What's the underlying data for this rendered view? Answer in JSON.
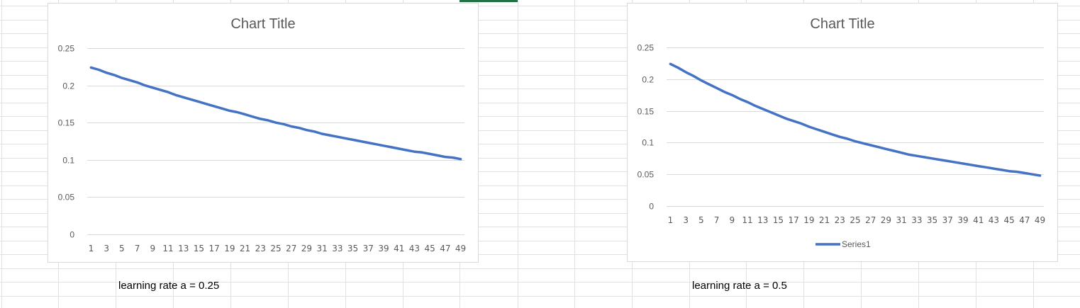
{
  "theme": {
    "series_color": "#4472c4",
    "gridline_color": "#d9d9d9",
    "sheet_grid_color": "#e1e1e1",
    "active_cell_color": "#217346"
  },
  "captions": [
    "learning rate a = 0.25",
    "learning rate a = 0.5"
  ],
  "chart_data": [
    {
      "type": "line",
      "title": "Chart Title",
      "xlabel": "",
      "ylabel": "",
      "x": [
        1,
        2,
        3,
        4,
        5,
        6,
        7,
        8,
        9,
        10,
        11,
        12,
        13,
        14,
        15,
        16,
        17,
        18,
        19,
        20,
        21,
        22,
        23,
        24,
        25,
        26,
        27,
        28,
        29,
        30,
        31,
        32,
        33,
        34,
        35,
        36,
        37,
        38,
        39,
        40,
        41,
        42,
        43,
        44,
        45,
        46,
        47,
        48,
        49
      ],
      "x_tick_labels": [
        "1",
        "3",
        "5",
        "7",
        "9",
        "11",
        "13",
        "15",
        "17",
        "19",
        "21",
        "23",
        "25",
        "27",
        "29",
        "31",
        "33",
        "35",
        "37",
        "39",
        "41",
        "43",
        "45",
        "47",
        "49"
      ],
      "y_ticks": [
        "0",
        "0.05",
        "0.1",
        "0.15",
        "0.2",
        "0.25"
      ],
      "ylim": [
        0,
        0.25
      ],
      "grid": true,
      "legend": "none",
      "series": [
        {
          "values": [
            0.224,
            0.221,
            0.217,
            0.214,
            0.21,
            0.207,
            0.204,
            0.2,
            0.197,
            0.194,
            0.191,
            0.187,
            0.184,
            0.181,
            0.178,
            0.175,
            0.172,
            0.169,
            0.166,
            0.164,
            0.161,
            0.158,
            0.155,
            0.153,
            0.15,
            0.148,
            0.145,
            0.143,
            0.14,
            0.138,
            0.135,
            0.133,
            0.131,
            0.129,
            0.127,
            0.125,
            0.123,
            0.121,
            0.119,
            0.117,
            0.115,
            0.113,
            0.111,
            0.11,
            0.108,
            0.106,
            0.104,
            0.103,
            0.101
          ]
        }
      ]
    },
    {
      "type": "line",
      "title": "Chart Title",
      "xlabel": "",
      "ylabel": "",
      "x": [
        1,
        2,
        3,
        4,
        5,
        6,
        7,
        8,
        9,
        10,
        11,
        12,
        13,
        14,
        15,
        16,
        17,
        18,
        19,
        20,
        21,
        22,
        23,
        24,
        25,
        26,
        27,
        28,
        29,
        30,
        31,
        32,
        33,
        34,
        35,
        36,
        37,
        38,
        39,
        40,
        41,
        42,
        43,
        44,
        45,
        46,
        47,
        48,
        49
      ],
      "x_tick_labels": [
        "1",
        "3",
        "5",
        "7",
        "9",
        "11",
        "13",
        "15",
        "17",
        "19",
        "21",
        "23",
        "25",
        "27",
        "29",
        "31",
        "33",
        "35",
        "37",
        "39",
        "41",
        "43",
        "45",
        "47",
        "49"
      ],
      "y_ticks": [
        "0",
        "0.05",
        "0.1",
        "0.15",
        "0.2",
        "0.25"
      ],
      "ylim": [
        0,
        0.25
      ],
      "grid": true,
      "legend": "bottom",
      "series": [
        {
          "name": "Series1",
          "values": [
            0.224,
            0.218,
            0.211,
            0.205,
            0.198,
            0.192,
            0.186,
            0.18,
            0.175,
            0.169,
            0.164,
            0.158,
            0.153,
            0.148,
            0.143,
            0.138,
            0.134,
            0.13,
            0.125,
            0.121,
            0.117,
            0.113,
            0.109,
            0.106,
            0.102,
            0.099,
            0.096,
            0.093,
            0.09,
            0.087,
            0.084,
            0.081,
            0.079,
            0.077,
            0.075,
            0.073,
            0.071,
            0.069,
            0.067,
            0.065,
            0.063,
            0.061,
            0.059,
            0.057,
            0.055,
            0.054,
            0.052,
            0.05,
            0.048
          ]
        }
      ]
    }
  ]
}
